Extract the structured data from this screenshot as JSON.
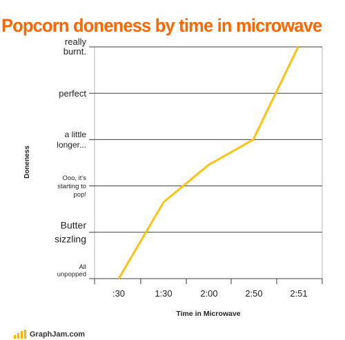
{
  "chart_data": {
    "type": "line",
    "title": "Popcorn doneness by time in microwave",
    "xlabel": "Time in Microwave",
    "ylabel": "Doneness",
    "categories": [
      ":30",
      "1:30",
      "2:00",
      "2:50",
      "2:51"
    ],
    "y_levels": [
      [
        "All",
        "unpopped"
      ],
      [
        "Butter",
        "sizzling"
      ],
      [
        "Ooo, it's",
        "starting to",
        "pop!"
      ],
      [
        "a little",
        "longer..."
      ],
      [
        "perfect"
      ],
      [
        "really",
        "burnt."
      ]
    ],
    "ylim": [
      0,
      5
    ],
    "grid": "horizontal",
    "series": [
      {
        "color": "#ffc20e",
        "points": [
          {
            "x": 0,
            "y": 0
          },
          {
            "x": 1.0,
            "y": 1.65
          },
          {
            "x": 2.0,
            "y": 2.45
          },
          {
            "x": 3.0,
            "y": 3.0
          },
          {
            "x": 4.0,
            "y": 5.0
          }
        ]
      }
    ]
  },
  "footer": {
    "brand": "GraphJam.com"
  }
}
